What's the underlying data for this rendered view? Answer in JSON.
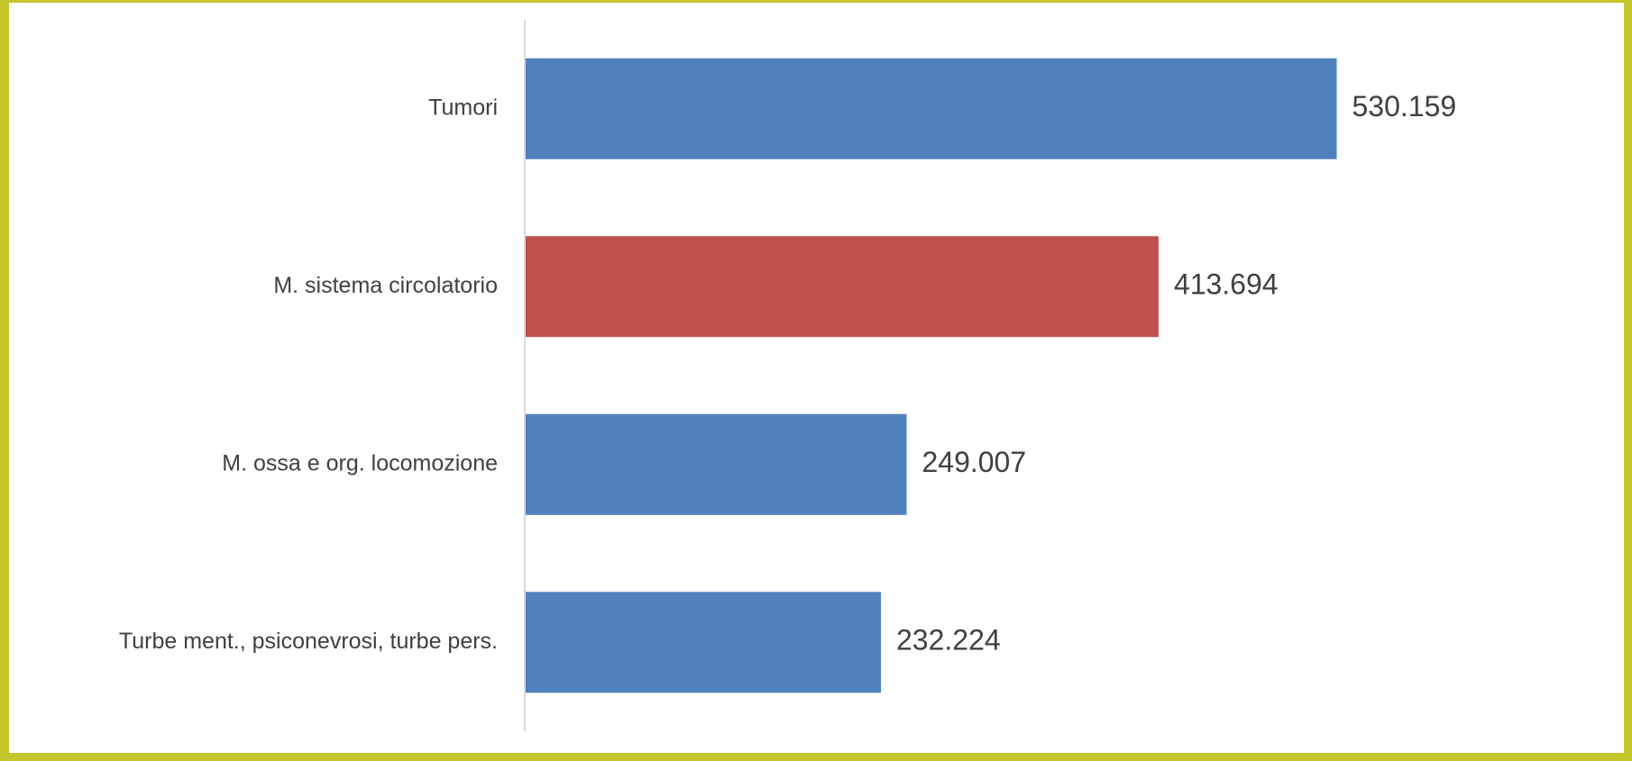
{
  "chart_data": {
    "type": "bar",
    "orientation": "horizontal",
    "categories": [
      "Tumori",
      "M. sistema circolatorio",
      "M. ossa e org. locomozione",
      "Turbe ment., psiconevrosi, turbe pers."
    ],
    "values": [
      530159,
      413694,
      249007,
      232224
    ],
    "value_labels": [
      "530.159",
      "413.694",
      "249.007",
      "232.224"
    ],
    "bar_colors": [
      "#4f81bd",
      "#c0504d",
      "#4f81bd",
      "#4f81bd"
    ],
    "xlim": [
      0,
      600000
    ],
    "grid": false,
    "legend": "none",
    "title": "",
    "xlabel": "",
    "ylabel": ""
  },
  "colors": {
    "frame": "#c4c62a",
    "axis": "#d9d9d9",
    "text": "#404040",
    "primary_bar": "#4f81bd",
    "highlight_bar": "#c0504d"
  }
}
